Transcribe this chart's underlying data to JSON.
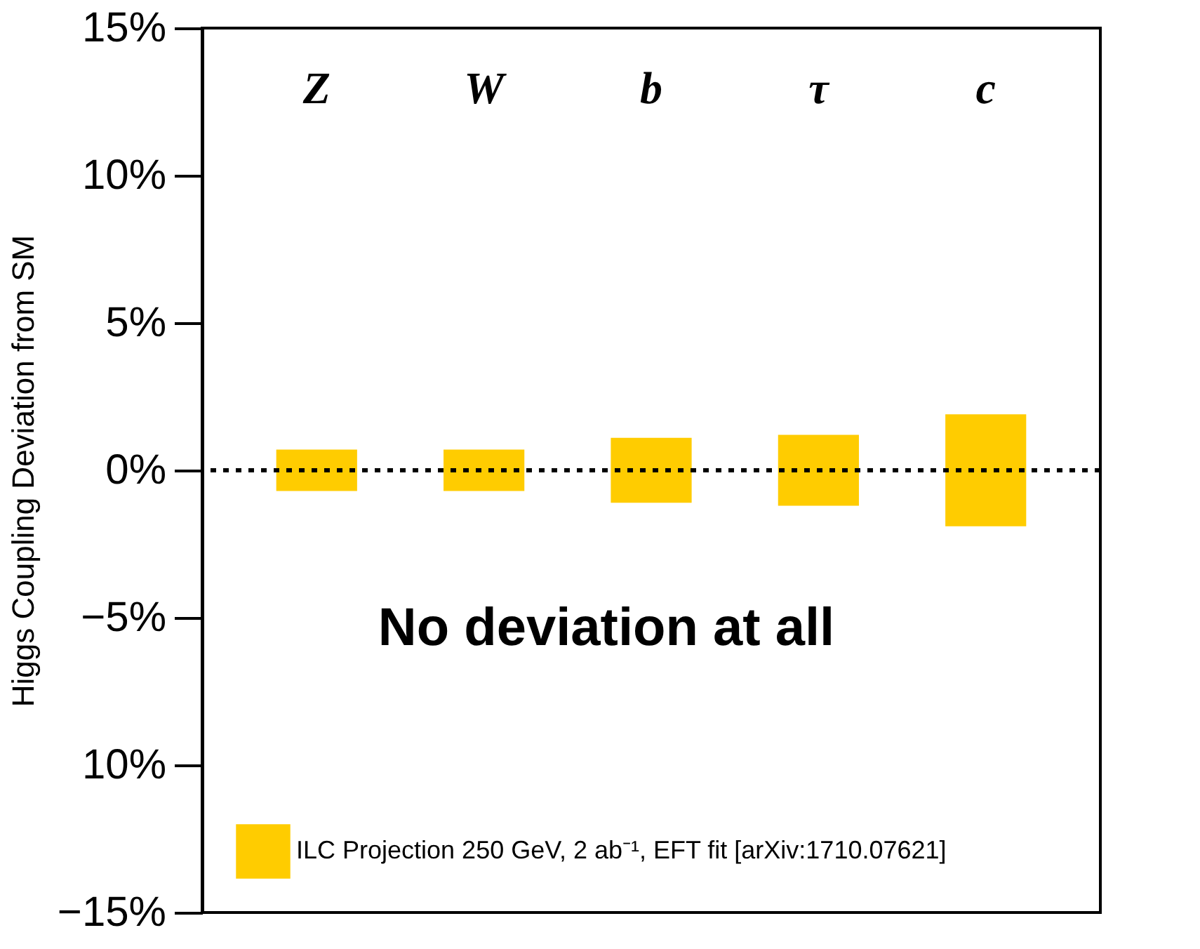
{
  "chart_data": {
    "type": "bar",
    "ylabel": "Higgs Coupling Deviation from SM",
    "categories": [
      "Z",
      "W",
      "b",
      "τ",
      "c"
    ],
    "series": [
      {
        "name": "ILC Projection 250 GeV, 2 ab⁻¹, EFT fit [arXiv:1710.07621]",
        "color": "#ffcc00",
        "base": [
          -0.7,
          -0.7,
          -1.1,
          -1.2,
          -1.9
        ],
        "values": [
          1.4,
          1.4,
          2.2,
          2.4,
          3.8
        ]
      }
    ],
    "ylim": [
      -15,
      15
    ],
    "yticks": [
      {
        "value": 15,
        "label": "15%"
      },
      {
        "value": 10,
        "label": "10%"
      },
      {
        "value": 5,
        "label": "5%"
      },
      {
        "value": 0,
        "label": "0%"
      },
      {
        "value": -5,
        "label": "−5%"
      },
      {
        "value": -10,
        "label": "10%"
      },
      {
        "value": -15,
        "label": "−15%"
      }
    ],
    "ref_lines": [
      {
        "axis": "y",
        "value": 0,
        "color": "#000000",
        "line_style": "dotted"
      }
    ],
    "annotations": [
      "No deviation at all"
    ],
    "grid": false,
    "legend": "bottom left"
  }
}
